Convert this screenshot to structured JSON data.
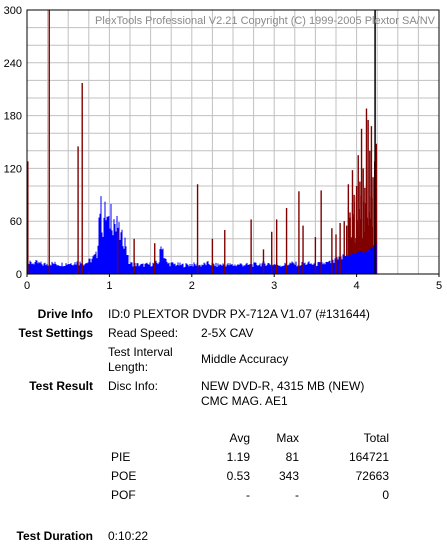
{
  "chart_data": {
    "type": "bar",
    "watermark": "PlexTools Professional V2.21 Copyright (C) 1999-2005 Plextor SA/NV",
    "x_ticks": [
      "0",
      "1",
      "2",
      "3",
      "4",
      "5"
    ],
    "y_ticks": [
      "0",
      "60",
      "120",
      "180",
      "240",
      "300"
    ],
    "xlim": [
      0,
      5
    ],
    "ylim": [
      0,
      300
    ],
    "grid": true,
    "colors": {
      "pie": "#0000ff",
      "poe": "#800000",
      "grid": "#c0c0c0",
      "end_marker": "#000000"
    },
    "series": [
      {
        "key": "pie",
        "values_description_note": "PIE per position (GB), sampled",
        "points": [
          [
            0.02,
            12
          ],
          [
            0.1,
            13
          ],
          [
            0.2,
            11
          ],
          [
            0.3,
            12
          ],
          [
            0.4,
            11
          ],
          [
            0.5,
            12
          ],
          [
            0.6,
            13
          ],
          [
            0.7,
            12
          ],
          [
            0.75,
            14
          ],
          [
            0.8,
            18
          ],
          [
            0.85,
            22
          ],
          [
            0.87,
            55
          ],
          [
            0.88,
            80
          ],
          [
            0.9,
            72
          ],
          [
            0.92,
            48
          ],
          [
            0.94,
            70
          ],
          [
            0.96,
            66
          ],
          [
            0.98,
            60
          ],
          [
            1.0,
            52
          ],
          [
            1.02,
            75
          ],
          [
            1.04,
            56
          ],
          [
            1.06,
            64
          ],
          [
            1.08,
            49
          ],
          [
            1.1,
            58
          ],
          [
            1.12,
            45
          ],
          [
            1.14,
            42
          ],
          [
            1.16,
            40
          ],
          [
            1.18,
            38
          ],
          [
            1.2,
            36
          ],
          [
            1.22,
            20
          ],
          [
            1.24,
            12
          ],
          [
            1.3,
            11
          ],
          [
            1.4,
            10
          ],
          [
            1.5,
            11
          ],
          [
            1.6,
            13
          ],
          [
            1.62,
            28
          ],
          [
            1.64,
            36
          ],
          [
            1.66,
            22
          ],
          [
            1.7,
            12
          ],
          [
            1.8,
            11
          ],
          [
            1.9,
            10
          ],
          [
            2.0,
            11
          ],
          [
            2.1,
            10
          ],
          [
            2.2,
            12
          ],
          [
            2.3,
            10
          ],
          [
            2.4,
            11
          ],
          [
            2.5,
            10
          ],
          [
            2.6,
            11
          ],
          [
            2.7,
            10
          ],
          [
            2.8,
            11
          ],
          [
            2.9,
            12
          ],
          [
            3.0,
            11
          ],
          [
            3.1,
            10
          ],
          [
            3.2,
            12
          ],
          [
            3.3,
            11
          ],
          [
            3.4,
            12
          ],
          [
            3.5,
            11
          ],
          [
            3.6,
            12
          ],
          [
            3.7,
            13
          ],
          [
            3.75,
            15
          ],
          [
            3.8,
            17
          ],
          [
            3.85,
            20
          ],
          [
            3.9,
            21
          ],
          [
            3.95,
            23
          ],
          [
            4.0,
            24
          ],
          [
            4.05,
            26
          ],
          [
            4.1,
            24
          ],
          [
            4.15,
            28
          ],
          [
            4.2,
            30
          ],
          [
            4.22,
            35
          ]
        ]
      },
      {
        "key": "poe",
        "points": [
          [
            0.01,
            128
          ],
          [
            0.27,
            300
          ],
          [
            0.62,
            145
          ],
          [
            0.67,
            217
          ],
          [
            1.1,
            50
          ],
          [
            1.3,
            40
          ],
          [
            1.55,
            35
          ],
          [
            2.07,
            102
          ],
          [
            2.25,
            40
          ],
          [
            2.4,
            50
          ],
          [
            2.72,
            62
          ],
          [
            2.87,
            28
          ],
          [
            2.97,
            48
          ],
          [
            3.03,
            62
          ],
          [
            3.15,
            75
          ],
          [
            3.3,
            94
          ],
          [
            3.35,
            55
          ],
          [
            3.5,
            42
          ],
          [
            3.57,
            95
          ],
          [
            3.7,
            52
          ],
          [
            3.75,
            45
          ],
          [
            3.8,
            58
          ],
          [
            3.85,
            60
          ],
          [
            3.88,
            55
          ],
          [
            3.9,
            102
          ],
          [
            3.92,
            70
          ],
          [
            3.95,
            118
          ],
          [
            3.97,
            90
          ],
          [
            4.0,
            100
          ],
          [
            4.02,
            135
          ],
          [
            4.04,
            105
          ],
          [
            4.06,
            165
          ],
          [
            4.08,
            120
          ],
          [
            4.1,
            98
          ],
          [
            4.12,
            188
          ],
          [
            4.14,
            175
          ],
          [
            4.16,
            140
          ],
          [
            4.18,
            168
          ],
          [
            4.2,
            110
          ],
          [
            4.22,
            128
          ],
          [
            4.24,
            148
          ]
        ]
      }
    ],
    "end_marker_x": 4.2
  },
  "info": {
    "drive_info_label": "Drive Info",
    "drive_info_value": "ID:0 PLEXTOR DVDR PX-712A V1.07 (#131644)",
    "test_settings_label": "Test Settings",
    "read_speed_label": "Read Speed:",
    "read_speed_value": "2-5X CAV",
    "interval_label_line1": "Test Interval",
    "interval_label_line2": "Length:",
    "interval_value": "Middle Accuracy",
    "test_result_label": "Test Result",
    "disc_info_label": "Disc Info:",
    "disc_info_line1": "NEW DVD-R, 4315 MB (NEW)",
    "disc_info_line2": "CMC MAG. AE1",
    "test_duration_label": "Test Duration",
    "test_duration_value": "0:10:22"
  },
  "results": {
    "headers": {
      "avg": "Avg",
      "max": "Max",
      "total": "Total"
    },
    "rows": [
      {
        "name": "PIE",
        "avg": "1.19",
        "max": "81",
        "total": "164721"
      },
      {
        "name": "POE",
        "avg": "0.53",
        "max": "343",
        "total": "72663"
      },
      {
        "name": "POF",
        "avg": "-",
        "max": "-",
        "total": "0"
      }
    ]
  }
}
